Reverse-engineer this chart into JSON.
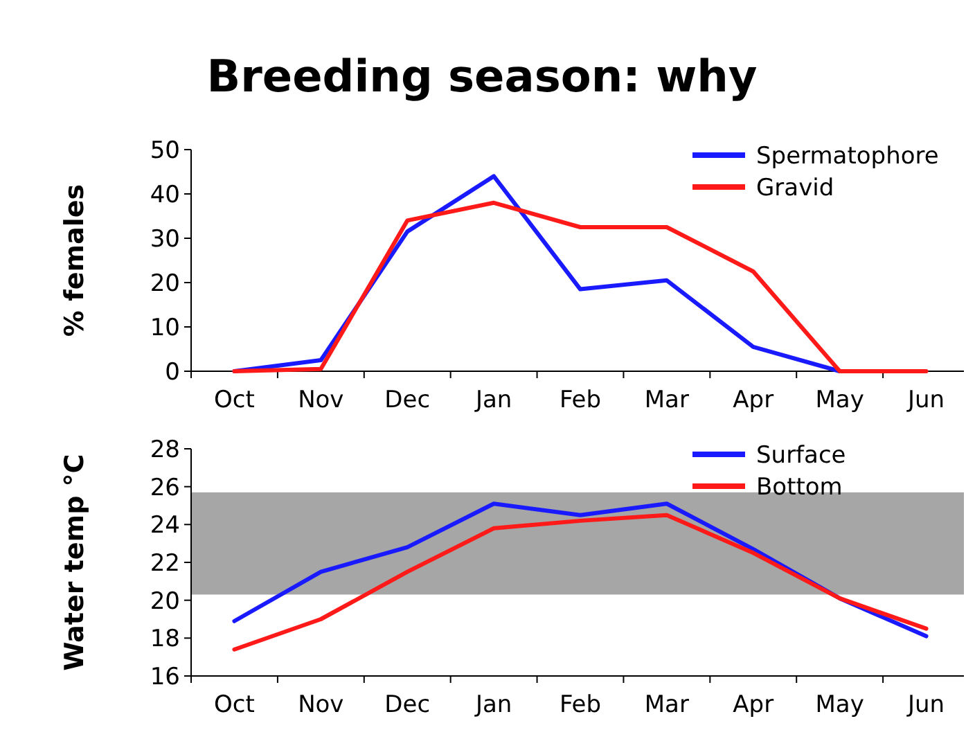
{
  "chart_data": [
    {
      "type": "line",
      "title": "Breeding season: why",
      "ylabel": "% females",
      "categories": [
        "Oct",
        "Nov",
        "Dec",
        "Jan",
        "Feb",
        "Mar",
        "Apr",
        "May",
        "Jun"
      ],
      "ylim": [
        0,
        50
      ],
      "yticks": [
        0,
        10,
        20,
        30,
        40,
        50
      ],
      "legend": "top right",
      "series": [
        {
          "name": "Spermatophore",
          "color": "#1a1aff",
          "values": [
            0,
            2.5,
            31.5,
            44,
            18.5,
            20.5,
            5.5,
            0,
            null
          ]
        },
        {
          "name": "Gravid",
          "color": "#ff1a1a",
          "values": [
            0,
            0.5,
            34,
            38,
            32.5,
            32.5,
            22.5,
            0,
            0
          ]
        }
      ]
    },
    {
      "type": "line",
      "ylabel": "Water temp °C",
      "categories": [
        "Oct",
        "Nov",
        "Dec",
        "Jan",
        "Feb",
        "Mar",
        "Apr",
        "May",
        "Jun"
      ],
      "ylim": [
        16,
        28
      ],
      "yticks": [
        16,
        18,
        20,
        22,
        24,
        26,
        28
      ],
      "legend": "top right",
      "bands": [
        {
          "axis": "y",
          "from": 20.3,
          "to": 25.7,
          "color": "#a6a6a6"
        }
      ],
      "series": [
        {
          "name": "Surface",
          "color": "#1a1aff",
          "values": [
            18.9,
            21.5,
            22.8,
            25.1,
            24.5,
            25.1,
            22.7,
            20.1,
            18.1
          ]
        },
        {
          "name": "Bottom",
          "color": "#ff1a1a",
          "values": [
            17.4,
            19,
            21.5,
            23.8,
            24.2,
            24.5,
            22.5,
            20.1,
            18.5
          ]
        }
      ]
    }
  ]
}
